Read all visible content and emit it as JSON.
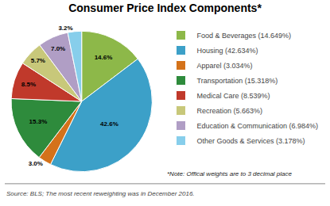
{
  "chart_data": {
    "type": "pie",
    "title": "Consumer Price Index Components*",
    "categories": [
      "Food & Beverages (14.649%)",
      "Housing (42.634%)",
      "Apparel (3.034%)",
      "Transportation (15.318%)",
      "Medical Care (8.539%)",
      "Recreation (5.663%)",
      "Education & Communication (6.984%)",
      "Other Goods & Services (3.178%)"
    ],
    "values": [
      14.649,
      42.634,
      3.034,
      15.318,
      8.539,
      5.663,
      6.984,
      3.178
    ],
    "value_labels": [
      "14.6%",
      "42.6%",
      "3.0%",
      "15.3%",
      "8.5%",
      "5.7%",
      "7.0%",
      "3.2%"
    ],
    "data_labels": true,
    "colors": [
      "#8db849",
      "#3ca0c8",
      "#d4721a",
      "#2e8b3c",
      "#c0392b",
      "#c8c87a",
      "#b09ec5",
      "#87ceeb"
    ],
    "legend": "right",
    "annotations": [
      "*Note: Offical weights are to 3 decimal place",
      "Source: BLS; The most recent reweighting was in December 2016."
    ]
  }
}
